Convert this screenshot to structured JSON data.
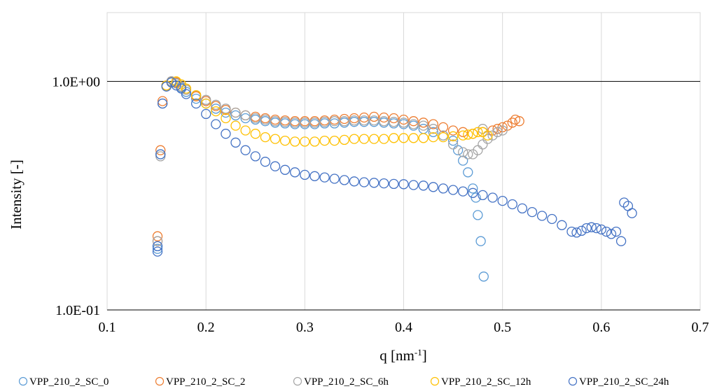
{
  "chart_data": {
    "type": "scatter",
    "title": "",
    "xlabel": "q [nm",
    "xlabel_sup": "-1",
    "xlabel_end": "]",
    "ylabel": "Intensity [-]",
    "xlim": [
      0.1,
      0.7
    ],
    "ylim": [
      0.1,
      2.0
    ],
    "y_scale": "log",
    "grid": "vertical",
    "legend_position": "bottom",
    "x_ticks": [
      0.1,
      0.2,
      0.3,
      0.4,
      0.5,
      0.6,
      0.7
    ],
    "x_tick_labels": [
      "0.1",
      "0.2",
      "0.3",
      "0.4",
      "0.5",
      "0.6",
      "0.7"
    ],
    "y_ticks": [
      0.1,
      1.0
    ],
    "y_tick_labels": [
      "1.0E-01",
      "1.0E+00"
    ],
    "marker": "open-circle",
    "series": [
      {
        "name": "VPP_210_2_SC_0",
        "color": "#5B9BD5",
        "points": [
          [
            0.151,
            0.185
          ],
          [
            0.151,
            0.19
          ],
          [
            0.154,
            0.48
          ],
          [
            0.156,
            0.8
          ],
          [
            0.16,
            0.95
          ],
          [
            0.165,
            1.0
          ],
          [
            0.17,
            0.98
          ],
          [
            0.175,
            0.94
          ],
          [
            0.18,
            0.9
          ],
          [
            0.19,
            0.84
          ],
          [
            0.2,
            0.8
          ],
          [
            0.21,
            0.76
          ],
          [
            0.22,
            0.73
          ],
          [
            0.23,
            0.71
          ],
          [
            0.24,
            0.69
          ],
          [
            0.25,
            0.68
          ],
          [
            0.26,
            0.67
          ],
          [
            0.27,
            0.66
          ],
          [
            0.28,
            0.655
          ],
          [
            0.29,
            0.65
          ],
          [
            0.3,
            0.65
          ],
          [
            0.31,
            0.65
          ],
          [
            0.32,
            0.655
          ],
          [
            0.33,
            0.655
          ],
          [
            0.34,
            0.66
          ],
          [
            0.35,
            0.665
          ],
          [
            0.36,
            0.665
          ],
          [
            0.37,
            0.665
          ],
          [
            0.38,
            0.66
          ],
          [
            0.39,
            0.655
          ],
          [
            0.4,
            0.65
          ],
          [
            0.41,
            0.64
          ],
          [
            0.42,
            0.62
          ],
          [
            0.43,
            0.6
          ],
          [
            0.44,
            0.58
          ],
          [
            0.45,
            0.55
          ],
          [
            0.455,
            0.5
          ],
          [
            0.46,
            0.45
          ],
          [
            0.465,
            0.4
          ],
          [
            0.47,
            0.34
          ],
          [
            0.473,
            0.31
          ],
          [
            0.475,
            0.26
          ],
          [
            0.478,
            0.2
          ],
          [
            0.481,
            0.14
          ]
        ]
      },
      {
        "name": "VPP_210_2_SC_2",
        "color": "#ED7D31",
        "points": [
          [
            0.151,
            0.21
          ],
          [
            0.151,
            0.2
          ],
          [
            0.154,
            0.5
          ],
          [
            0.156,
            0.82
          ],
          [
            0.16,
            0.96
          ],
          [
            0.165,
            1.0
          ],
          [
            0.17,
            0.99
          ],
          [
            0.175,
            0.95
          ],
          [
            0.18,
            0.92
          ],
          [
            0.19,
            0.86
          ],
          [
            0.2,
            0.82
          ],
          [
            0.21,
            0.78
          ],
          [
            0.22,
            0.75
          ],
          [
            0.23,
            0.73
          ],
          [
            0.24,
            0.71
          ],
          [
            0.25,
            0.7
          ],
          [
            0.26,
            0.69
          ],
          [
            0.27,
            0.68
          ],
          [
            0.28,
            0.675
          ],
          [
            0.29,
            0.67
          ],
          [
            0.3,
            0.67
          ],
          [
            0.31,
            0.67
          ],
          [
            0.32,
            0.675
          ],
          [
            0.33,
            0.68
          ],
          [
            0.34,
            0.685
          ],
          [
            0.35,
            0.69
          ],
          [
            0.36,
            0.695
          ],
          [
            0.37,
            0.7
          ],
          [
            0.38,
            0.695
          ],
          [
            0.39,
            0.69
          ],
          [
            0.4,
            0.68
          ],
          [
            0.41,
            0.67
          ],
          [
            0.42,
            0.66
          ],
          [
            0.43,
            0.65
          ],
          [
            0.44,
            0.63
          ],
          [
            0.45,
            0.61
          ],
          [
            0.46,
            0.6
          ],
          [
            0.47,
            0.59
          ],
          [
            0.48,
            0.6
          ],
          [
            0.49,
            0.61
          ],
          [
            0.495,
            0.62
          ],
          [
            0.5,
            0.63
          ],
          [
            0.505,
            0.64
          ],
          [
            0.51,
            0.66
          ],
          [
            0.513,
            0.68
          ],
          [
            0.517,
            0.67
          ]
        ]
      },
      {
        "name": "VPP_210_2_SC_6h",
        "color": "#A5A5A5",
        "points": [
          [
            0.151,
            0.2
          ],
          [
            0.154,
            0.47
          ],
          [
            0.156,
            0.8
          ],
          [
            0.16,
            0.95
          ],
          [
            0.165,
            1.0
          ],
          [
            0.17,
            0.98
          ],
          [
            0.175,
            0.95
          ],
          [
            0.18,
            0.92
          ],
          [
            0.19,
            0.87
          ],
          [
            0.2,
            0.83
          ],
          [
            0.21,
            0.79
          ],
          [
            0.22,
            0.76
          ],
          [
            0.23,
            0.73
          ],
          [
            0.24,
            0.71
          ],
          [
            0.25,
            0.69
          ],
          [
            0.26,
            0.68
          ],
          [
            0.27,
            0.67
          ],
          [
            0.28,
            0.665
          ],
          [
            0.29,
            0.66
          ],
          [
            0.3,
            0.66
          ],
          [
            0.31,
            0.66
          ],
          [
            0.32,
            0.665
          ],
          [
            0.33,
            0.67
          ],
          [
            0.34,
            0.67
          ],
          [
            0.35,
            0.675
          ],
          [
            0.36,
            0.675
          ],
          [
            0.37,
            0.675
          ],
          [
            0.38,
            0.67
          ],
          [
            0.39,
            0.665
          ],
          [
            0.4,
            0.66
          ],
          [
            0.41,
            0.65
          ],
          [
            0.42,
            0.64
          ],
          [
            0.43,
            0.62
          ],
          [
            0.44,
            0.58
          ],
          [
            0.45,
            0.53
          ],
          [
            0.46,
            0.49
          ],
          [
            0.465,
            0.48
          ],
          [
            0.47,
            0.48
          ],
          [
            0.475,
            0.5
          ],
          [
            0.48,
            0.53
          ],
          [
            0.485,
            0.56
          ],
          [
            0.49,
            0.58
          ],
          [
            0.495,
            0.6
          ],
          [
            0.5,
            0.61
          ],
          [
            0.48,
            0.62
          ]
        ]
      },
      {
        "name": "VPP_210_2_SC_12h",
        "color": "#FFC000",
        "points": [
          [
            0.16,
            0.96
          ],
          [
            0.165,
            0.99
          ],
          [
            0.17,
            1.0
          ],
          [
            0.175,
            0.97
          ],
          [
            0.18,
            0.93
          ],
          [
            0.19,
            0.87
          ],
          [
            0.2,
            0.8
          ],
          [
            0.21,
            0.74
          ],
          [
            0.22,
            0.69
          ],
          [
            0.23,
            0.64
          ],
          [
            0.24,
            0.61
          ],
          [
            0.25,
            0.59
          ],
          [
            0.26,
            0.57
          ],
          [
            0.27,
            0.56
          ],
          [
            0.28,
            0.55
          ],
          [
            0.29,
            0.545
          ],
          [
            0.3,
            0.545
          ],
          [
            0.31,
            0.545
          ],
          [
            0.32,
            0.55
          ],
          [
            0.33,
            0.55
          ],
          [
            0.34,
            0.555
          ],
          [
            0.35,
            0.56
          ],
          [
            0.36,
            0.56
          ],
          [
            0.37,
            0.56
          ],
          [
            0.38,
            0.56
          ],
          [
            0.39,
            0.565
          ],
          [
            0.4,
            0.565
          ],
          [
            0.41,
            0.565
          ],
          [
            0.42,
            0.565
          ],
          [
            0.43,
            0.57
          ],
          [
            0.44,
            0.57
          ],
          [
            0.45,
            0.575
          ],
          [
            0.46,
            0.58
          ],
          [
            0.465,
            0.585
          ],
          [
            0.47,
            0.59
          ],
          [
            0.475,
            0.6
          ],
          [
            0.48,
            0.6
          ],
          [
            0.485,
            0.58
          ]
        ]
      },
      {
        "name": "VPP_210_2_SC_24h",
        "color": "#4472C4",
        "points": [
          [
            0.151,
            0.18
          ],
          [
            0.151,
            0.19
          ],
          [
            0.154,
            0.48
          ],
          [
            0.156,
            0.8
          ],
          [
            0.16,
            0.95
          ],
          [
            0.165,
            0.99
          ],
          [
            0.17,
            0.96
          ],
          [
            0.175,
            0.93
          ],
          [
            0.18,
            0.88
          ],
          [
            0.19,
            0.8
          ],
          [
            0.2,
            0.72
          ],
          [
            0.21,
            0.65
          ],
          [
            0.22,
            0.59
          ],
          [
            0.23,
            0.54
          ],
          [
            0.24,
            0.5
          ],
          [
            0.25,
            0.47
          ],
          [
            0.26,
            0.445
          ],
          [
            0.27,
            0.425
          ],
          [
            0.28,
            0.41
          ],
          [
            0.29,
            0.4
          ],
          [
            0.3,
            0.39
          ],
          [
            0.31,
            0.385
          ],
          [
            0.32,
            0.38
          ],
          [
            0.33,
            0.375
          ],
          [
            0.34,
            0.37
          ],
          [
            0.35,
            0.365
          ],
          [
            0.36,
            0.362
          ],
          [
            0.37,
            0.36
          ],
          [
            0.38,
            0.358
          ],
          [
            0.39,
            0.356
          ],
          [
            0.4,
            0.355
          ],
          [
            0.41,
            0.352
          ],
          [
            0.42,
            0.35
          ],
          [
            0.43,
            0.345
          ],
          [
            0.44,
            0.34
          ],
          [
            0.45,
            0.335
          ],
          [
            0.46,
            0.33
          ],
          [
            0.47,
            0.325
          ],
          [
            0.48,
            0.318
          ],
          [
            0.49,
            0.31
          ],
          [
            0.5,
            0.3
          ],
          [
            0.51,
            0.29
          ],
          [
            0.52,
            0.278
          ],
          [
            0.53,
            0.268
          ],
          [
            0.54,
            0.258
          ],
          [
            0.55,
            0.25
          ],
          [
            0.56,
            0.235
          ],
          [
            0.57,
            0.22
          ],
          [
            0.575,
            0.218
          ],
          [
            0.58,
            0.222
          ],
          [
            0.585,
            0.228
          ],
          [
            0.59,
            0.23
          ],
          [
            0.595,
            0.228
          ],
          [
            0.6,
            0.225
          ],
          [
            0.605,
            0.22
          ],
          [
            0.61,
            0.215
          ],
          [
            0.615,
            0.22
          ],
          [
            0.62,
            0.2
          ],
          [
            0.623,
            0.295
          ],
          [
            0.627,
            0.285
          ],
          [
            0.631,
            0.265
          ]
        ]
      }
    ]
  }
}
